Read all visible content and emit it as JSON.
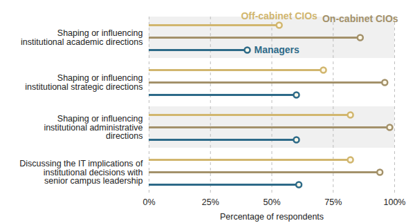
{
  "chart_data": {
    "type": "lollipop",
    "orientation": "horizontal",
    "categories": [
      "Shaping or influencing institutional academic directions",
      "Shaping or influencing institutional strategic directions",
      "Shaping or influencing institutional administrative directions",
      "Discussing the IT implications of institutional decisions with senior campus leadership"
    ],
    "series": [
      {
        "name": "Off-cabinet CIOs",
        "color": "#d1b66e",
        "values": [
          53,
          71,
          82,
          82
        ]
      },
      {
        "name": "On-cabinet CIOs",
        "color": "#a3916a",
        "values": [
          86,
          96,
          98,
          94
        ]
      },
      {
        "name": "Managers",
        "color": "#2d6a88",
        "values": [
          40,
          60,
          60,
          61
        ]
      }
    ],
    "xlabel": "Percentage of respondents",
    "xlim": [
      0,
      100
    ],
    "xticks": [
      {
        "value": 0,
        "label": "0%"
      },
      {
        "value": 25,
        "label": "25%"
      },
      {
        "value": 50,
        "label": "50%"
      },
      {
        "value": 75,
        "label": "75%"
      },
      {
        "value": 100,
        "label": "100%"
      }
    ],
    "grid": true
  }
}
